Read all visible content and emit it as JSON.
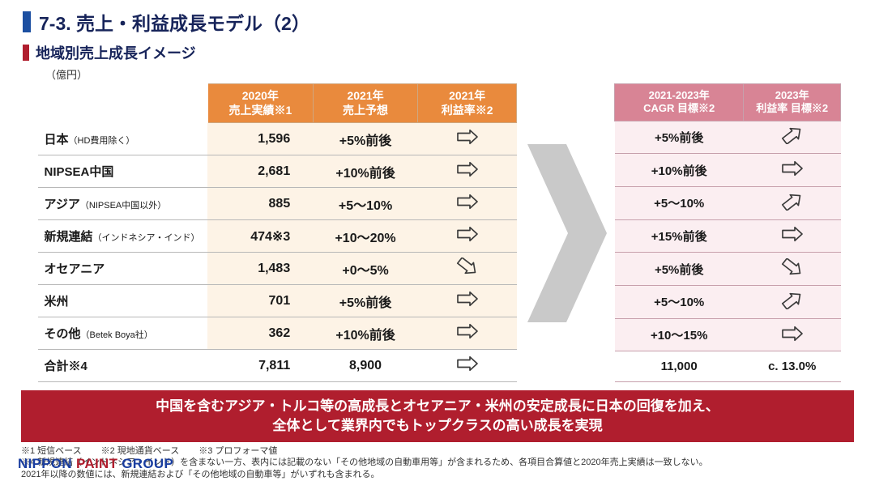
{
  "colors": {
    "title_text": "#17245a",
    "title_bar": "#1c4fa1",
    "subtitle_bar": "#b01e2e",
    "orange_header_bg": "#e98a3d",
    "orange_cell_bg": "#fdf3e6",
    "pink_header_bg": "#d88495",
    "pink_cell_bg": "#fbeef1",
    "callout_bg": "#b01e2e",
    "chevron_fill": "#c9c9c9",
    "arrow_stroke": "#3a3a3a"
  },
  "title": "7-3. 売上・利益成長モデル（2）",
  "subtitle": "地域別売上成長イメージ",
  "unit": "（億円）",
  "left_headers": {
    "h1": "2020年\n売上実績※1",
    "h2": "2021年\n売上予想",
    "h3": "2021年\n利益率※2"
  },
  "right_headers": {
    "h1": "2021-2023年\nCAGR 目標※2",
    "h2": "2023年\n利益率 目標※2"
  },
  "rows": [
    {
      "label_main": "日本",
      "label_sub": "（HD費用除く）",
      "v2020": "1,596",
      "v2021f": "+5%前後",
      "arrL": "flat",
      "cagr": "+5%前後",
      "arrR": "up"
    },
    {
      "label_main": "NIPSEA中国",
      "label_sub": "",
      "v2020": "2,681",
      "v2021f": "+10%前後",
      "arrL": "flat",
      "cagr": "+10%前後",
      "arrR": "flat"
    },
    {
      "label_main": "アジア",
      "label_sub": "（NIPSEA中国以外）",
      "v2020": "885",
      "v2021f": "+5～10%",
      "arrL": "flat",
      "cagr": "+5～10%",
      "arrR": "up"
    },
    {
      "label_main": "新規連結",
      "label_sub": "（インドネシア・インド）",
      "v2020": "474※3",
      "v2021f": "+10～20%",
      "arrL": "flat",
      "cagr": "+15%前後",
      "arrR": "flat"
    },
    {
      "label_main": "オセアニア",
      "label_sub": "",
      "v2020": "1,483",
      "v2021f": "+0～5%",
      "arrL": "down",
      "cagr": "+5%前後",
      "arrR": "down"
    },
    {
      "label_main": "米州",
      "label_sub": "",
      "v2020": "701",
      "v2021f": "+5%前後",
      "arrL": "flat",
      "cagr": "+5～10%",
      "arrR": "up"
    },
    {
      "label_main": "その他",
      "label_sub": "（Betek Boya社）",
      "v2020": "362",
      "v2021f": "+10%前後",
      "arrL": "flat",
      "cagr": "+10～15%",
      "arrR": "flat"
    }
  ],
  "total": {
    "label": "合計※4",
    "v2020": "7,811",
    "v2021f": "8,900",
    "arrL": "flat",
    "cagr": "11,000",
    "profit2023": "c. 13.0%"
  },
  "callout_line1": "中国を含むアジア・トルコ等の高成長とオセアニア・米州の安定成長に日本の回復を加え、",
  "callout_line2": "全体として業界内でもトップクラスの高い成長を実現",
  "footnotes": {
    "f1": "※1 短信ベース",
    "f2": "※2 現地通貨ベース",
    "f3": "※3 プロフォーマ値",
    "f4": "※4 新規連結（インドネシア・インド）を含まない一方、表内には記載のない「その他地域の自動車用等」が含まれるため、各項目合算値と2020年売上実績は一致しない。",
    "f5": "2021年以降の数値には、新規連結および「その他地域の自動車等」がいずれも含まれる。"
  },
  "footer": {
    "a": "NIPPON ",
    "b": "PAINT ",
    "c": "GROUP"
  }
}
